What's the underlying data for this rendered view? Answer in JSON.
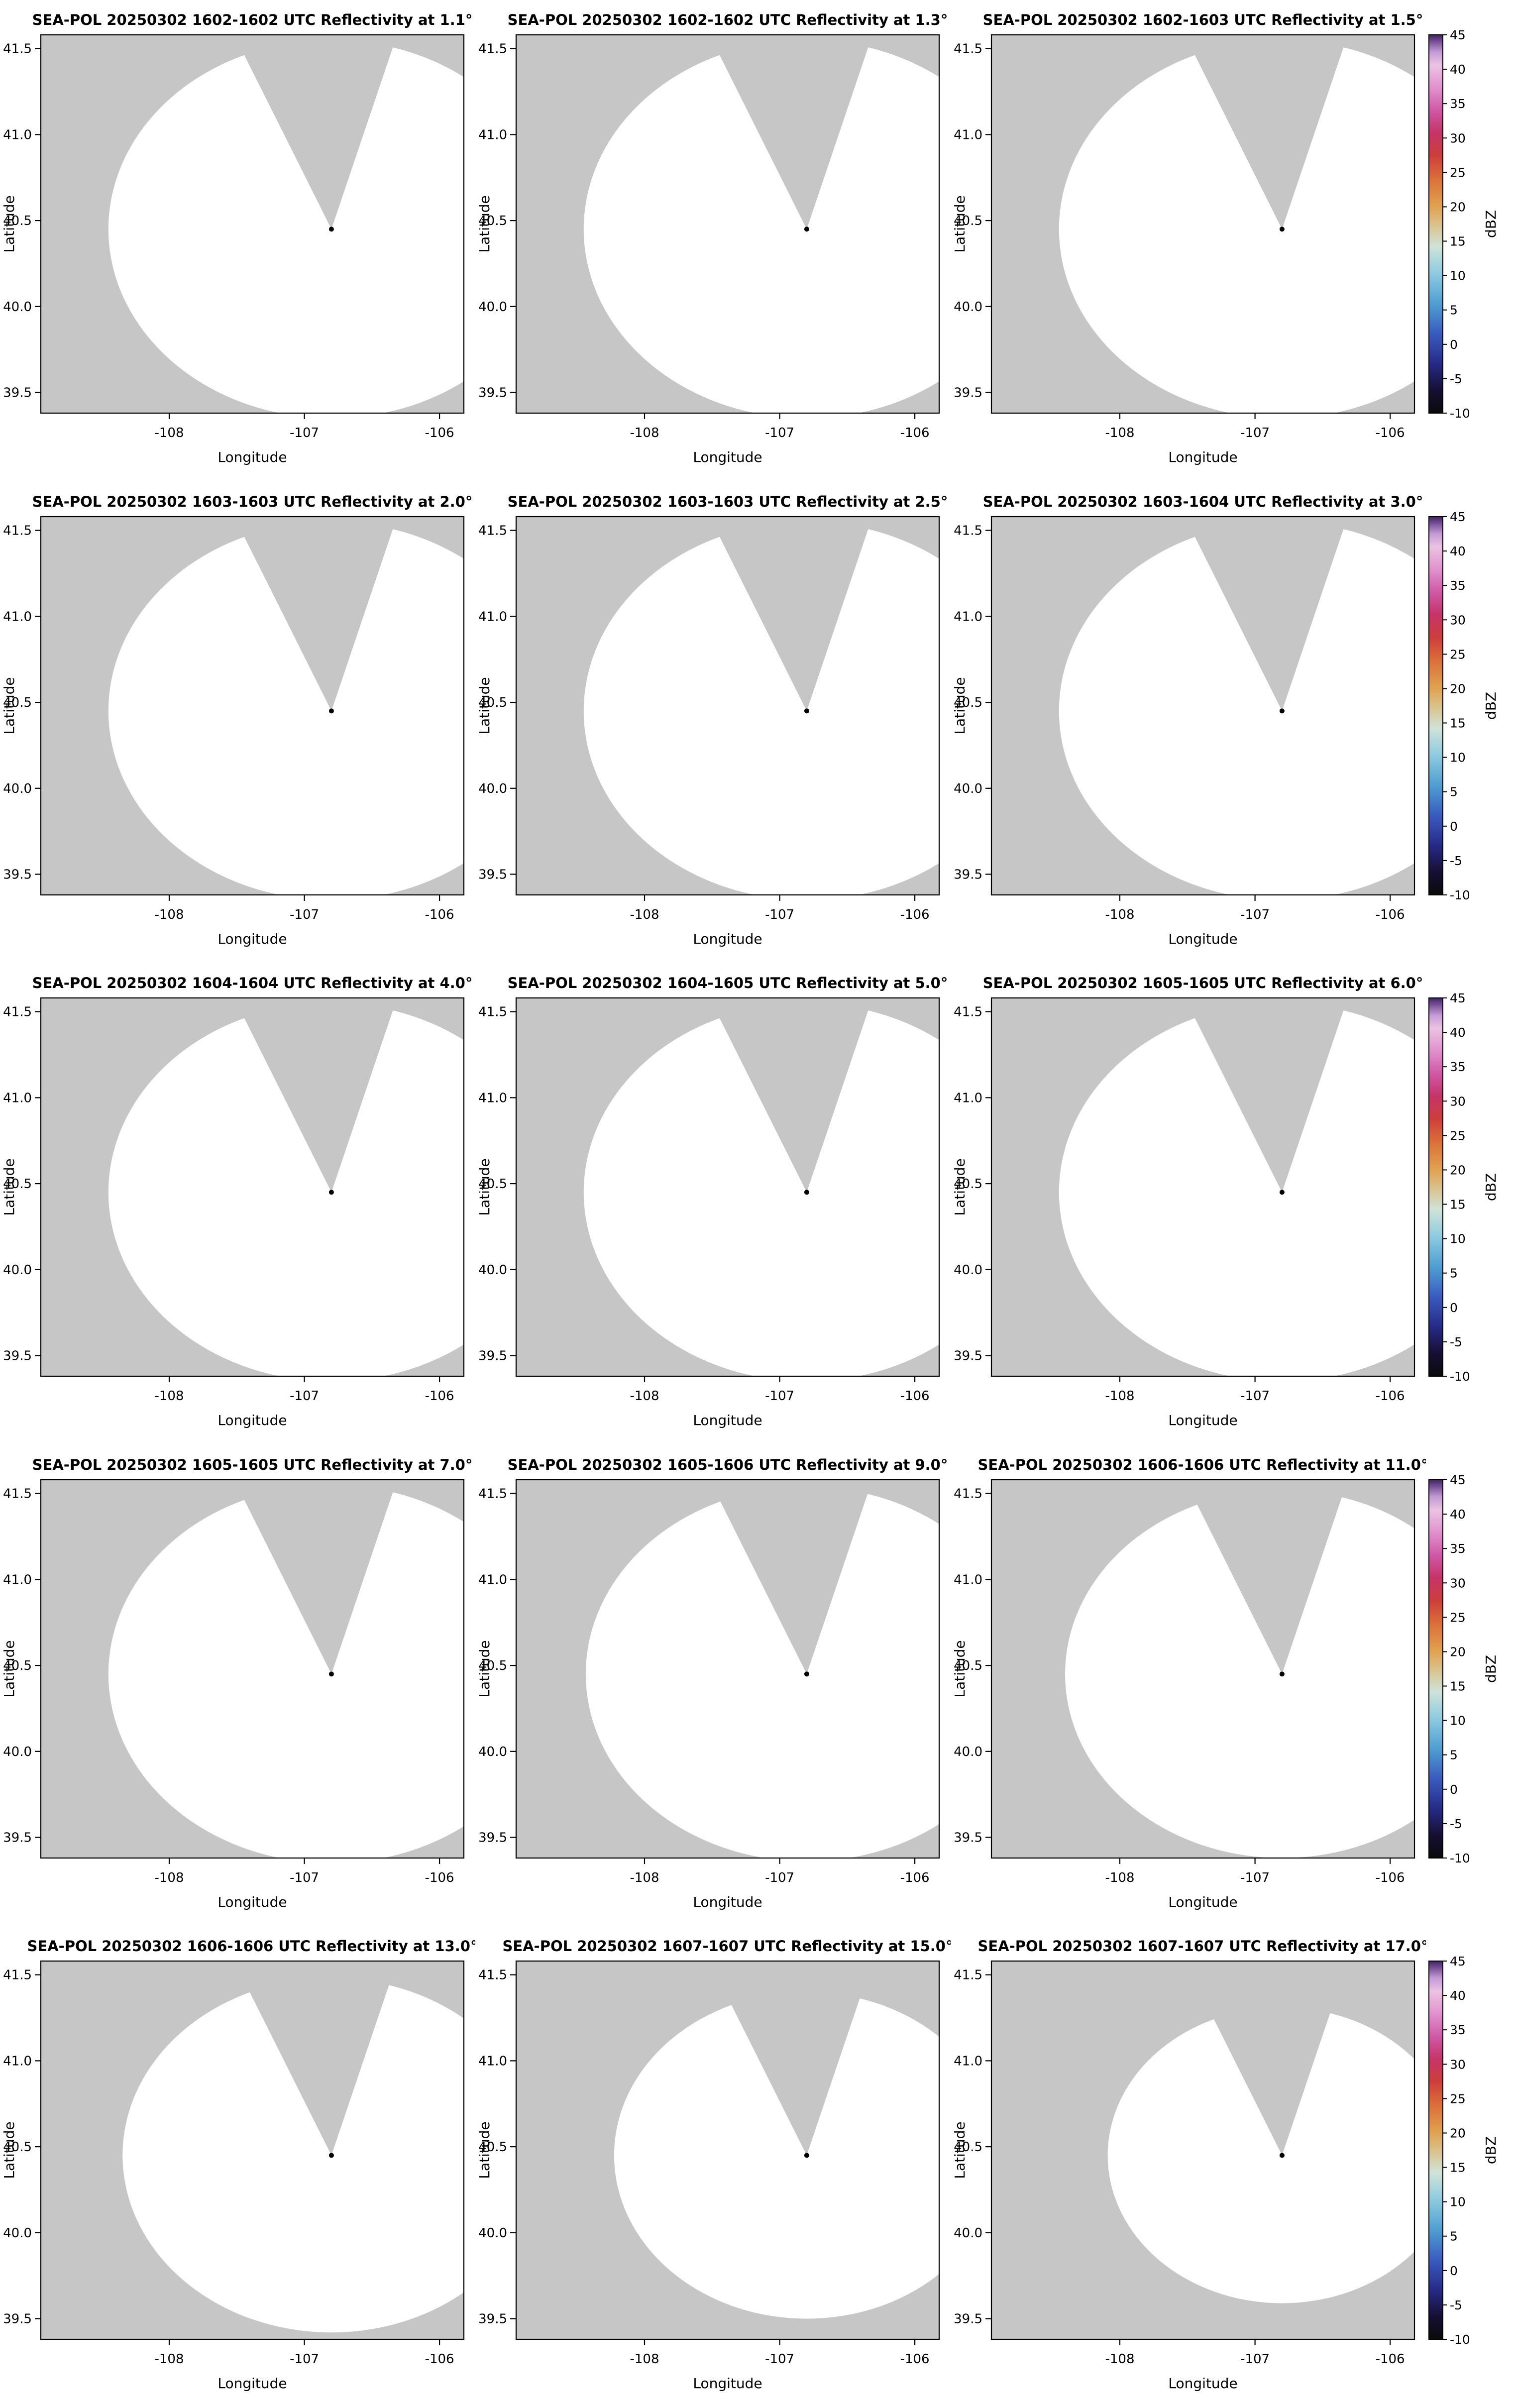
{
  "page": {
    "background": "#ffffff"
  },
  "chart_data": {
    "type": "heatmap",
    "subtype": "radar-ppi-map-grid",
    "layout": {
      "rows": 5,
      "cols": 3,
      "colorbar_per_row": true
    },
    "shared": {
      "xlabel": "Longitude",
      "ylabel": "Latitude",
      "xlim": [
        -108.95,
        -105.82
      ],
      "ylim": [
        39.38,
        41.58
      ],
      "xticks": [
        -108,
        -107,
        -106
      ],
      "xtick_labels": [
        "-108",
        "-107",
        "-106"
      ],
      "yticks": [
        39.5,
        40.0,
        40.5,
        41.0,
        41.5
      ],
      "ytick_labels": [
        "39.5",
        "40.0",
        "40.5",
        "41.0",
        "41.5"
      ],
      "radar_lon": -106.8,
      "radar_lat": 40.45,
      "lon_stretch": 1.5,
      "wedge_az_deg": [
        -23,
        16
      ],
      "panel_bg": "#c6c6c6",
      "coverage_color": "#ffffff",
      "marker_color": "#000000",
      "colorbar": {
        "label": "dBZ",
        "vmin": -10,
        "vmax": 45,
        "tick_values": [
          -10,
          -5,
          0,
          5,
          10,
          15,
          20,
          25,
          30,
          35,
          40,
          45
        ],
        "tick_labels": [
          "-10",
          "-5",
          "0",
          "5",
          "10",
          "15",
          "20",
          "25",
          "30",
          "35",
          "40",
          "45"
        ],
        "stops": [
          [
            0.0,
            "#0a0a0a"
          ],
          [
            0.06,
            "#160f33"
          ],
          [
            0.13,
            "#262a86"
          ],
          [
            0.21,
            "#3a5bbf"
          ],
          [
            0.29,
            "#4f9fd2"
          ],
          [
            0.37,
            "#8ecbe0"
          ],
          [
            0.44,
            "#cfe3da"
          ],
          [
            0.49,
            "#d8c795"
          ],
          [
            0.55,
            "#e0a04e"
          ],
          [
            0.62,
            "#da6f3a"
          ],
          [
            0.68,
            "#cd3f3a"
          ],
          [
            0.74,
            "#c53467"
          ],
          [
            0.8,
            "#cf58a6"
          ],
          [
            0.86,
            "#e191cd"
          ],
          [
            0.92,
            "#ecc3e3"
          ],
          [
            0.955,
            "#c39ad6"
          ],
          [
            1.0,
            "#45206b"
          ]
        ]
      }
    },
    "panels": [
      {
        "title": "SEA-POL 20250302 1602-1602 UTC Reflectivity at 1.1°",
        "time_utc": "1602-1602",
        "elevation_deg": 1.1,
        "radius_lat_deg": 1.1
      },
      {
        "title": "SEA-POL 20250302 1602-1602 UTC Reflectivity at 1.3°",
        "time_utc": "1602-1602",
        "elevation_deg": 1.3,
        "radius_lat_deg": 1.1
      },
      {
        "title": "SEA-POL 20250302 1602-1603 UTC Reflectivity at 1.5°",
        "time_utc": "1602-1603",
        "elevation_deg": 1.5,
        "radius_lat_deg": 1.1
      },
      {
        "title": "SEA-POL 20250302 1603-1603 UTC Reflectivity at 2.0°",
        "time_utc": "1603-1603",
        "elevation_deg": 2.0,
        "radius_lat_deg": 1.1
      },
      {
        "title": "SEA-POL 20250302 1603-1603 UTC Reflectivity at 2.5°",
        "time_utc": "1603-1603",
        "elevation_deg": 2.5,
        "radius_lat_deg": 1.1
      },
      {
        "title": "SEA-POL 20250302 1603-1604 UTC Reflectivity at 3.0°",
        "time_utc": "1603-1604",
        "elevation_deg": 3.0,
        "radius_lat_deg": 1.1
      },
      {
        "title": "SEA-POL 20250302 1604-1604 UTC Reflectivity at 4.0°",
        "time_utc": "1604-1604",
        "elevation_deg": 4.0,
        "radius_lat_deg": 1.1
      },
      {
        "title": "SEA-POL 20250302 1604-1605 UTC Reflectivity at 5.0°",
        "time_utc": "1604-1605",
        "elevation_deg": 5.0,
        "radius_lat_deg": 1.1
      },
      {
        "title": "SEA-POL 20250302 1605-1605 UTC Reflectivity at 6.0°",
        "time_utc": "1605-1605",
        "elevation_deg": 6.0,
        "radius_lat_deg": 1.1
      },
      {
        "title": "SEA-POL 20250302 1605-1605 UTC Reflectivity at 7.0°",
        "time_utc": "1605-1605",
        "elevation_deg": 7.0,
        "radius_lat_deg": 1.1
      },
      {
        "title": "SEA-POL 20250302 1605-1606 UTC Reflectivity at 9.0°",
        "time_utc": "1605-1606",
        "elevation_deg": 9.0,
        "radius_lat_deg": 1.09
      },
      {
        "title": "SEA-POL 20250302 1606-1606 UTC Reflectivity at 11.0°",
        "time_utc": "1606-1606",
        "elevation_deg": 11.0,
        "radius_lat_deg": 1.07
      },
      {
        "title": "SEA-POL 20250302 1606-1606 UTC Reflectivity at 13.0°",
        "time_utc": "1606-1606",
        "elevation_deg": 13.0,
        "radius_lat_deg": 1.03
      },
      {
        "title": "SEA-POL 20250302 1607-1607 UTC Reflectivity at 15.0°",
        "time_utc": "1607-1607",
        "elevation_deg": 15.0,
        "radius_lat_deg": 0.95
      },
      {
        "title": "SEA-POL 20250302 1607-1607 UTC Reflectivity at 17.0°",
        "time_utc": "1607-1607",
        "elevation_deg": 17.0,
        "radius_lat_deg": 0.86
      }
    ]
  }
}
